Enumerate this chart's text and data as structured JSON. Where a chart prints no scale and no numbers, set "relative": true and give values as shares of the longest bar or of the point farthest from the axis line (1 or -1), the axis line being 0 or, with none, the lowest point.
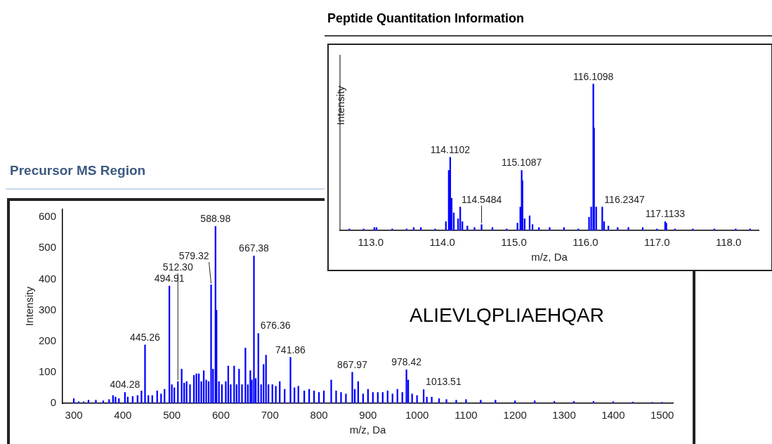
{
  "chart_data": [
    {
      "type": "bar",
      "title": "Precursor MS Region",
      "xlabel": "m/z, Da",
      "ylabel": "Intensity",
      "xlim": [
        277,
        1522
      ],
      "xticks": [
        300,
        400,
        500,
        600,
        700,
        800,
        900,
        1000,
        1100,
        1200,
        1300,
        1400,
        1500
      ],
      "ylim": [
        0,
        625
      ],
      "yticks": [
        0,
        100,
        200,
        300,
        400,
        500,
        600
      ],
      "grid": false,
      "legend": false,
      "series": [
        {
          "color": "#0000ff",
          "x": [
            300,
            310,
            320,
            330,
            345,
            360,
            372,
            380,
            385,
            392,
            404.28,
            410,
            420,
            430,
            438,
            445.26,
            452,
            460,
            470,
            478,
            485,
            494.91,
            500,
            505,
            512.3,
            520,
            525,
            530,
            537,
            545,
            550,
            555,
            560,
            565,
            570,
            575,
            580,
            584,
            588.98,
            591,
            596,
            602,
            610,
            615,
            620,
            627,
            632,
            637,
            643,
            650,
            655,
            660,
            663,
            667.38,
            671,
            676.36,
            682,
            687,
            692,
            697,
            705,
            712,
            720,
            730,
            741.86,
            750,
            758,
            770,
            780,
            790,
            800,
            810,
            825,
            835,
            845,
            855,
            867.97,
            873,
            880,
            890,
            900,
            910,
            920,
            930,
            940,
            950,
            960,
            970,
            978.42,
            982,
            990,
            1000,
            1013.51,
            1020,
            1030,
            1045,
            1060,
            1080,
            1100,
            1130,
            1160,
            1200,
            1240,
            1280,
            1320,
            1360,
            1400,
            1440,
            1480,
            1500
          ],
          "values": [
            15,
            5,
            5,
            10,
            10,
            8,
            12,
            25,
            20,
            15,
            35,
            20,
            22,
            25,
            40,
            188,
            25,
            25,
            40,
            30,
            45,
            378,
            60,
            50,
            70,
            110,
            65,
            70,
            60,
            90,
            95,
            95,
            70,
            105,
            75,
            70,
            382,
            110,
            570,
            300,
            70,
            60,
            70,
            120,
            60,
            120,
            60,
            110,
            60,
            178,
            60,
            105,
            75,
            475,
            80,
            225,
            60,
            125,
            155,
            60,
            60,
            55,
            70,
            45,
            148,
            50,
            55,
            40,
            45,
            40,
            35,
            40,
            75,
            40,
            35,
            30,
            100,
            45,
            70,
            30,
            45,
            35,
            35,
            35,
            40,
            30,
            45,
            35,
            108,
            75,
            30,
            25,
            44,
            20,
            20,
            15,
            12,
            10,
            12,
            10,
            10,
            8,
            8,
            6,
            6,
            6,
            5,
            4,
            3,
            3
          ]
        }
      ],
      "annotations": [
        {
          "text": "404.28",
          "x": 404.28,
          "y": 35
        },
        {
          "text": "445.26",
          "x": 445.26,
          "y": 188
        },
        {
          "text": "494.91",
          "x": 494.91,
          "y": 378
        },
        {
          "text": "512.30",
          "x": 512.3,
          "y": 70
        },
        {
          "text": "579.32",
          "x": 580,
          "y": 382
        },
        {
          "text": "588.98",
          "x": 588.98,
          "y": 570
        },
        {
          "text": "667.38",
          "x": 667.38,
          "y": 475
        },
        {
          "text": "676.36",
          "x": 676.36,
          "y": 225
        },
        {
          "text": "741.86",
          "x": 741.86,
          "y": 148
        },
        {
          "text": "867.97",
          "x": 867.97,
          "y": 100
        },
        {
          "text": "978.42",
          "x": 978.42,
          "y": 108
        },
        {
          "text": "1013.51",
          "x": 1013.51,
          "y": 44
        },
        "ALIEVLQPLIAEHQAR"
      ]
    },
    {
      "type": "bar",
      "title": "Peptide Quantitation Information",
      "xlabel": "m/z, Da",
      "ylabel": "Intensity",
      "relative": true,
      "xlim": [
        112.57,
        118.42
      ],
      "xticks": [
        {
          "value": 113,
          "label": "113.0"
        },
        {
          "value": 114,
          "label": "114.0"
        },
        {
          "value": 115,
          "label": "115.0"
        },
        {
          "value": 116,
          "label": "116.0"
        },
        {
          "value": 117,
          "label": "117.0"
        },
        {
          "value": 118,
          "label": "118.0"
        }
      ],
      "grid": false,
      "legend": false,
      "series": [
        {
          "color": "#0000ff",
          "x": [
            112.7,
            112.9,
            113.05,
            113.08,
            113.3,
            113.5,
            113.6,
            113.7,
            113.9,
            114.05,
            114.09,
            114.1102,
            114.13,
            114.16,
            114.22,
            114.25,
            114.28,
            114.35,
            114.45,
            114.5484,
            114.7,
            114.9,
            115.05,
            115.09,
            115.1087,
            115.12,
            115.15,
            115.22,
            115.26,
            115.35,
            115.5,
            115.7,
            115.9,
            116.05,
            116.08,
            116.1098,
            116.12,
            116.15,
            116.2347,
            116.26,
            116.32,
            116.45,
            116.6,
            116.8,
            117.0,
            117.1133,
            117.13,
            117.25,
            117.5,
            117.8,
            118.1,
            118.3
          ],
          "values": [
            0.01,
            0.01,
            0.02,
            0.02,
            0.01,
            0.01,
            0.02,
            0.02,
            0.01,
            0.06,
            0.41,
            0.5,
            0.22,
            0.12,
            0.08,
            0.16,
            0.06,
            0.03,
            0.02,
            0.04,
            0.02,
            0.01,
            0.05,
            0.16,
            0.41,
            0.34,
            0.08,
            0.1,
            0.04,
            0.02,
            0.02,
            0.02,
            0.01,
            0.09,
            0.16,
            1,
            0.7,
            0.16,
            0.16,
            0.06,
            0.03,
            0.02,
            0.02,
            0.02,
            0.01,
            0.06,
            0.05,
            0.01,
            0.01,
            0.01,
            0.01,
            0.01
          ]
        }
      ],
      "annotations": [
        {
          "text": "114.1102",
          "x": 114.1102,
          "y": 0.5
        },
        {
          "text": "114.5484",
          "x": 114.5484,
          "y": 0.04
        },
        {
          "text": "115.1087",
          "x": 115.1087,
          "y": 0.41
        },
        {
          "text": "116.1098",
          "x": 116.1098,
          "y": 1
        },
        {
          "text": "116.2347",
          "x": 116.2347,
          "y": 0.16
        },
        {
          "text": "117.1133",
          "x": 117.1133,
          "y": 0.06
        }
      ]
    }
  ]
}
